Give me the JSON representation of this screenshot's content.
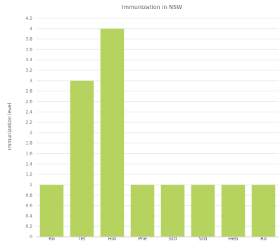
{
  "chart_data": {
    "type": "bar",
    "title": "Immunization in NSW",
    "ylabel": "Immunization level",
    "xlabel": "",
    "categories": [
      "Ro",
      "Tet",
      "Hib",
      "Pne",
      "Std",
      "Std",
      "Heb",
      "Ro"
    ],
    "values": [
      1.0,
      3.0,
      4.0,
      1.0,
      1.0,
      1.0,
      1.0,
      1.0
    ],
    "ylim": [
      0,
      4.2
    ],
    "y_ticks": [
      "0",
      "0.2",
      "0.4",
      "0.6",
      "0.8",
      "1",
      "1.2",
      "1.4",
      "1.6",
      "1.8",
      "2",
      "2.2",
      "2.4",
      "2.6",
      "2.8",
      "3",
      "3.2",
      "3.4",
      "3.6",
      "3.8",
      "4",
      "4.2"
    ],
    "grid": true,
    "legend": "none",
    "bar_color": "#b6d35f"
  }
}
